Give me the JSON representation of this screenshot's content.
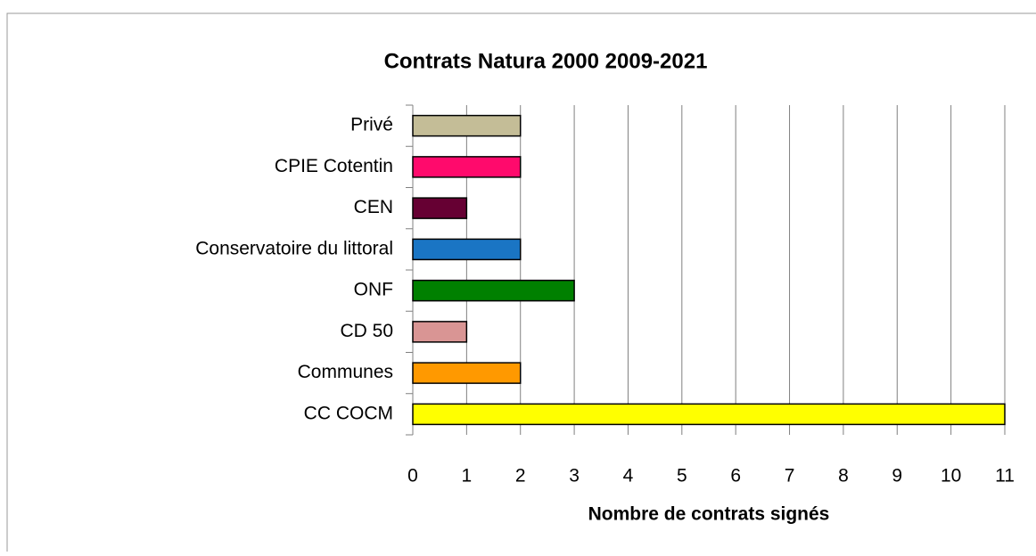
{
  "chart_data": {
    "type": "bar",
    "orientation": "horizontal",
    "title": "Contrats Natura 2000 2009-2021",
    "x_label": "Nombre de contrats signés",
    "categories": [
      "Privé",
      "CPIE Cotentin",
      "CEN",
      "Conservatoire du littoral",
      "ONF",
      "CD 50",
      "Communes",
      "CC COCM"
    ],
    "values": [
      2,
      2,
      1,
      2,
      3,
      1,
      2,
      11
    ],
    "colors": [
      "#c4bd97",
      "#ff0a6c",
      "#660033",
      "#1a75c4",
      "#008000",
      "#d99594",
      "#ff9900",
      "#ffff00"
    ],
    "xlim": [
      0,
      11
    ],
    "xticks": [
      0,
      1,
      2,
      3,
      4,
      5,
      6,
      7,
      8,
      9,
      10,
      11
    ],
    "grid": true
  }
}
